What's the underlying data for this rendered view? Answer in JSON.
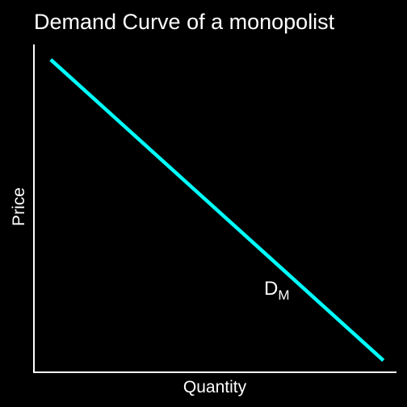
{
  "chart_data": {
    "type": "line",
    "title": "Demand Curve of a monopolist",
    "xlabel": "Quantity",
    "ylabel": "Price",
    "grid": false,
    "legend": "none",
    "x_ticks": [],
    "y_ticks": [],
    "series": [
      {
        "name": "DM",
        "label_main": "D",
        "label_sub": "M",
        "color": "#00ffff",
        "points": [
          {
            "x": 0.05,
            "y": 0.95
          },
          {
            "x": 0.96,
            "y": 0.04
          }
        ]
      }
    ],
    "xlim": [
      0,
      1
    ],
    "ylim": [
      0,
      1
    ],
    "colors": {
      "background": "#000000",
      "axis": "#ffffff",
      "text": "#ffffff"
    }
  }
}
